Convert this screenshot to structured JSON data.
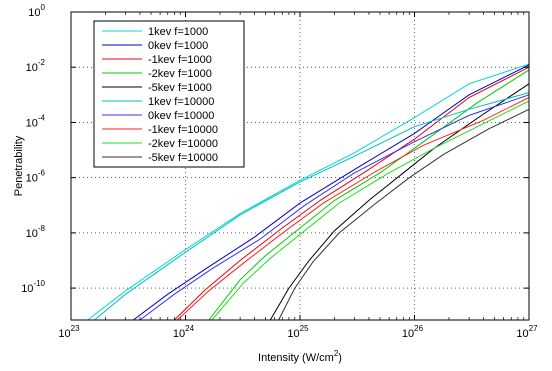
{
  "chart_data": {
    "type": "line",
    "title": "",
    "xlabel": "Intensity (W/cm",
    "xlabel_sup": "2",
    "xlabel_end": ")",
    "ylabel": "Penetrability",
    "xscale": "log",
    "yscale": "log",
    "xlim": [
      1e+23,
      1e+27
    ],
    "ylim": [
      7e-12,
      1
    ],
    "grid": true,
    "legend_position": "top-left",
    "x_ticks": [
      {
        "base": "10",
        "exp": "23",
        "value": 1e+23
      },
      {
        "base": "10",
        "exp": "24",
        "value": 1e+24
      },
      {
        "base": "10",
        "exp": "25",
        "value": 1e+25
      },
      {
        "base": "10",
        "exp": "26",
        "value": 1e+26
      },
      {
        "base": "10",
        "exp": "27",
        "value": 1e+27
      }
    ],
    "y_ticks": [
      {
        "base": "10",
        "exp": "0",
        "value": 1
      },
      {
        "base": "10",
        "exp": "-2",
        "value": 0.01
      },
      {
        "base": "10",
        "exp": "-4",
        "value": 0.0001
      },
      {
        "base": "10",
        "exp": "-6",
        "value": 1e-06
      },
      {
        "base": "10",
        "exp": "-8",
        "value": 1e-08
      },
      {
        "base": "10",
        "exp": "-10",
        "value": 1e-10
      }
    ],
    "series": [
      {
        "name": "1kev f=1000",
        "color": "#00d8d8",
        "x": [
          1.4e+23,
          3e+23,
          1e+24,
          3e+24,
          1e+25,
          3e+25,
          1e+26,
          3e+26,
          1e+27
        ],
        "y": [
          7e-12,
          8e-11,
          2.5e-09,
          5e-08,
          8e-07,
          8e-06,
          0.00015,
          0.0025,
          0.013
        ]
      },
      {
        "name": "0kev f=1000",
        "color": "#0000cc",
        "x": [
          3.5e+23,
          7e+23,
          1.5e+24,
          4e+24,
          1e+25,
          3e+25,
          1e+26,
          3e+26,
          1e+27
        ],
        "y": [
          7e-12,
          6e-11,
          5e-10,
          7e-09,
          1.2e-07,
          2e-06,
          4e-05,
          0.001,
          0.012
        ]
      },
      {
        "name": "-1kev f=1000",
        "color": "#ee0000",
        "x": [
          8e+23,
          1.5e+24,
          3e+24,
          7e+24,
          1.5e+25,
          4e+25,
          1e+26,
          3e+26,
          1e+27
        ],
        "y": [
          7e-12,
          9e-11,
          1e-09,
          1.5e-08,
          1.5e-07,
          2e-06,
          2.5e-05,
          0.0008,
          0.01
        ]
      },
      {
        "name": "-2kev f=1000",
        "color": "#00cc00",
        "x": [
          1.6e+24,
          3e+24,
          5e+24,
          1e+25,
          2e+25,
          5e+25,
          1.2e+26,
          3.5e+26,
          1e+27
        ],
        "y": [
          7e-12,
          2e-10,
          1.5e-09,
          1.5e-08,
          1.5e-07,
          1.5e-06,
          2e-05,
          0.0005,
          0.008
        ]
      },
      {
        "name": "-5kev f=1000",
        "color": "#000000",
        "x": [
          5.5e+24,
          8e+24,
          1.2e+25,
          2e+25,
          4e+25,
          8e+25,
          1.5e+26,
          4e+26,
          1e+27
        ],
        "y": [
          7e-12,
          1e-10,
          1e-09,
          1.2e-08,
          1.5e-07,
          1.5e-06,
          1.2e-05,
          0.0002,
          0.0025
        ]
      },
      {
        "name": "1kev f=10000",
        "color": "#00c0c0",
        "x": [
          1.6e+23,
          3e+23,
          1e+24,
          3e+24,
          1e+25,
          3e+25,
          1e+26,
          3e+26,
          1e+27
        ],
        "y": [
          7e-12,
          6e-11,
          2e-09,
          4.5e-08,
          7e-07,
          6e-06,
          7e-05,
          0.0003,
          0.0012
        ]
      },
      {
        "name": "0kev f=10000",
        "color": "#3333ee",
        "x": [
          4e+23,
          8e+23,
          1.7e+24,
          4.5e+24,
          1.1e+25,
          3e+25,
          1e+26,
          3e+26,
          1e+27
        ],
        "y": [
          7e-12,
          6e-11,
          5e-10,
          6e-09,
          1e-07,
          1.5e-06,
          2e-05,
          0.00018,
          0.001
        ]
      },
      {
        "name": "-1kev f=10000",
        "color": "#ff2222",
        "x": [
          8.5e+23,
          1.6e+24,
          3.2e+24,
          7.5e+24,
          1.6e+25,
          4.5e+25,
          1.2e+26,
          4e+26,
          1e+27
        ],
        "y": [
          7e-12,
          8e-11,
          8e-10,
          1.2e-08,
          1.2e-07,
          1.6e-06,
          1.5e-05,
          0.00012,
          0.0008
        ]
      },
      {
        "name": "-2kev f=10000",
        "color": "#22dd22",
        "x": [
          1.7e+24,
          3.2e+24,
          5.5e+24,
          1.1e+25,
          2.2e+25,
          6e+25,
          1.5e+26,
          4e+26,
          1e+27
        ],
        "y": [
          7e-12,
          1.5e-10,
          1.2e-09,
          1.2e-08,
          1.2e-07,
          1.5e-06,
          1.2e-05,
          9e-05,
          0.0006
        ]
      },
      {
        "name": "-5kev f=10000",
        "color": "#333333",
        "x": [
          6.5e+24,
          9e+24,
          1.3e+25,
          2.2e+25,
          4.5e+25,
          9e+25,
          1.8e+26,
          4.5e+26,
          1e+27
        ],
        "y": [
          7e-12,
          1e-10,
          9e-10,
          1e-08,
          1.1e-07,
          1e-06,
          7e-06,
          6e-05,
          0.0003
        ]
      }
    ]
  }
}
